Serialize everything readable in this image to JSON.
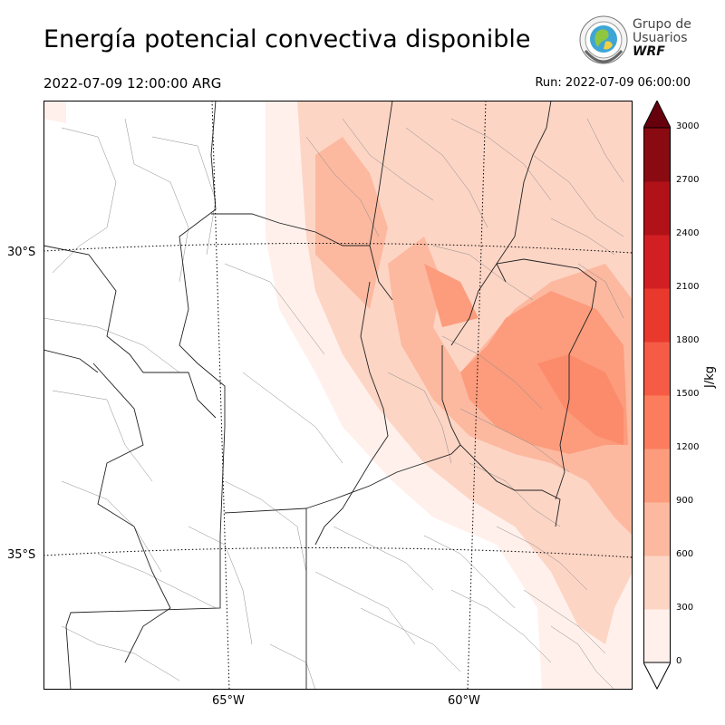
{
  "header": {
    "title": "Energía potencial convectiva disponible",
    "valid_time": "2022-07-09 12:00:00 ARG",
    "run_time": "Run: 2022-07-09 06:00:00"
  },
  "logo": {
    "line1": "Grupo de",
    "line2": "Usuarios",
    "line3": "WRF"
  },
  "map": {
    "lat_labels": [
      "30°S",
      "35°S"
    ],
    "lon_labels": [
      "65°W",
      "60°W"
    ]
  },
  "colorbar": {
    "unit": "J/kg",
    "ticks": [
      "0",
      "300",
      "600",
      "900",
      "1200",
      "1500",
      "1800",
      "2100",
      "2400",
      "2700",
      "3000"
    ],
    "colors": [
      "#fff0eb",
      "#fdd5c5",
      "#fcb9a0",
      "#fc9c7c",
      "#fb7d5d",
      "#f65c45",
      "#e9382c",
      "#d11f23",
      "#b11218",
      "#8a0a12"
    ],
    "over_color": "#67000d",
    "under_color": "#ffffff"
  }
}
